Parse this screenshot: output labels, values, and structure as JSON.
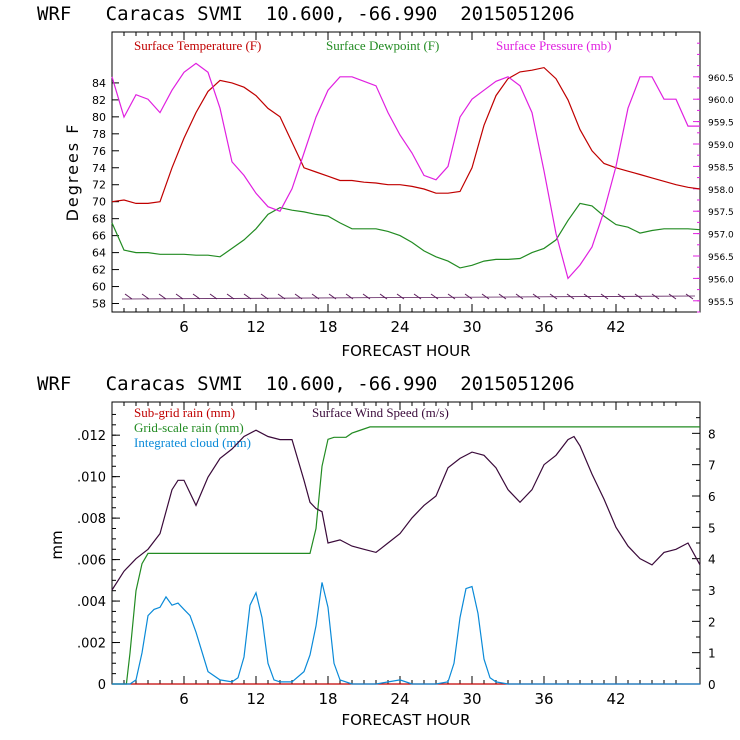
{
  "chart_data": [
    {
      "type": "line",
      "title": "WRF   Caracas SVMI  10.600, -66.990  2015051206",
      "xlabel": "FORECAST HOUR",
      "ylabel": "Degrees F",
      "xlim": [
        0,
        49
      ],
      "ylim": [
        57,
        90
      ],
      "y2lim": [
        955.25,
        961.5
      ],
      "x_ticks": [
        6,
        12,
        18,
        24,
        30,
        36,
        42
      ],
      "y_ticks": [
        58,
        60,
        62,
        64,
        66,
        68,
        70,
        72,
        74,
        76,
        78,
        80,
        82,
        84
      ],
      "y2_ticks": [
        "955.5",
        "956.0",
        "956.5",
        "957.0",
        "957.5",
        "958.0",
        "958.5",
        "959.0",
        "959.5",
        "960.0",
        "960.5"
      ],
      "legend": [
        "Surface Temperature (F)",
        "Surface Dewpoint (F)",
        "Surface Pressure (mb)"
      ],
      "series": [
        {
          "name": "Surface Temperature (F)",
          "axis": "left",
          "color": "#c00000",
          "x": [
            0,
            1,
            2,
            3,
            4,
            5,
            6,
            7,
            8,
            9,
            10,
            11,
            12,
            13,
            14,
            15,
            16,
            17,
            18,
            19,
            20,
            21,
            22,
            23,
            24,
            25,
            26,
            27,
            28,
            29,
            30,
            31,
            32,
            33,
            34,
            35,
            36,
            37,
            38,
            39,
            40,
            41,
            42,
            43,
            44,
            45,
            46,
            47,
            48,
            49
          ],
          "values": [
            70,
            70.2,
            69.8,
            69.8,
            70,
            74,
            77.5,
            80.5,
            83,
            84.3,
            84,
            83.5,
            82.5,
            81,
            80,
            77,
            74,
            73.5,
            73,
            72.5,
            72.5,
            72.3,
            72.2,
            72,
            72,
            71.8,
            71.5,
            71,
            71,
            71.2,
            74,
            79,
            82.5,
            84.5,
            85.3,
            85.5,
            85.8,
            84.5,
            82,
            78.5,
            76,
            74.5,
            74,
            73.6,
            73.2,
            72.8,
            72.4,
            72,
            71.7,
            71.5
          ]
        },
        {
          "name": "Surface Dewpoint (F)",
          "axis": "left",
          "color": "#228b22",
          "x": [
            0,
            1,
            2,
            3,
            4,
            5,
            6,
            7,
            8,
            9,
            10,
            11,
            12,
            13,
            14,
            15,
            16,
            17,
            18,
            19,
            20,
            21,
            22,
            23,
            24,
            25,
            26,
            27,
            28,
            29,
            30,
            31,
            32,
            33,
            34,
            35,
            36,
            37,
            38,
            39,
            40,
            41,
            42,
            43,
            44,
            45,
            46,
            47,
            48,
            49
          ],
          "values": [
            67.5,
            64.3,
            64,
            64,
            63.8,
            63.8,
            63.8,
            63.7,
            63.7,
            63.5,
            64.5,
            65.5,
            66.8,
            68.5,
            69.3,
            69,
            68.8,
            68.5,
            68.3,
            67.5,
            66.8,
            66.8,
            66.8,
            66.5,
            66,
            65.2,
            64.2,
            63.5,
            63,
            62.2,
            62.5,
            63,
            63.2,
            63.2,
            63.3,
            64,
            64.5,
            65.5,
            67.8,
            69.8,
            69.5,
            68.3,
            67.3,
            67,
            66.3,
            66.6,
            66.8,
            66.8,
            66.8,
            66.7
          ]
        },
        {
          "name": "Surface Pressure (mb)",
          "axis": "right",
          "color": "#e020e0",
          "x": [
            0,
            1,
            2,
            3,
            4,
            5,
            6,
            7,
            8,
            9,
            10,
            11,
            12,
            13,
            14,
            15,
            16,
            17,
            18,
            19,
            20,
            21,
            22,
            23,
            24,
            25,
            26,
            27,
            28,
            29,
            30,
            31,
            32,
            33,
            34,
            35,
            36,
            37,
            38,
            39,
            40,
            41,
            42,
            43,
            44,
            45,
            46,
            47,
            48,
            49
          ],
          "values": [
            960.5,
            959.6,
            960.1,
            960.0,
            959.7,
            960.2,
            960.6,
            960.8,
            960.6,
            959.8,
            958.6,
            958.3,
            957.9,
            957.6,
            957.5,
            958.0,
            958.8,
            959.6,
            960.2,
            960.5,
            960.5,
            960.4,
            960.3,
            959.7,
            959.2,
            958.8,
            958.3,
            958.2,
            958.5,
            959.6,
            960.0,
            960.2,
            960.4,
            960.5,
            960.3,
            959.7,
            958.4,
            957.0,
            956.0,
            956.3,
            956.7,
            957.5,
            958.5,
            959.8,
            960.5,
            960.5,
            960.0,
            960.0,
            959.4,
            959.4
          ]
        }
      ]
    },
    {
      "type": "line",
      "title": "WRF   Caracas SVMI  10.600, -66.990  2015051206",
      "xlabel": "FORECAST HOUR",
      "ylabel": "mm",
      "xlim": [
        0,
        49
      ],
      "ylim": [
        0,
        0.0136
      ],
      "y2lim": [
        0,
        9
      ],
      "x_ticks": [
        6,
        12,
        18,
        24,
        30,
        36,
        42
      ],
      "y_ticks": [
        ".012",
        ".010",
        ".008",
        ".006",
        ".004",
        ".002",
        "0"
      ],
      "y2_ticks": [
        "8",
        "7",
        "6",
        "5",
        "4",
        "3",
        "2",
        "1",
        "0"
      ],
      "legend": [
        "Sub-grid rain (mm)",
        "Grid-scale rain (mm)",
        "Integrated cloud (mm)",
        "Surface Wind Speed (m/s)"
      ],
      "series": [
        {
          "name": "Sub-grid rain (mm)",
          "axis": "left",
          "color": "#c00000",
          "x": [
            0,
            49
          ],
          "values": [
            0,
            0
          ]
        },
        {
          "name": "Grid-scale rain (mm)",
          "axis": "left",
          "color": "#228b22",
          "x": [
            0,
            1.2,
            1.5,
            2,
            2.5,
            3,
            16.5,
            17,
            17.5,
            18,
            18.5,
            19.5,
            20,
            20.5,
            21.5,
            22.5,
            49
          ],
          "values": [
            0,
            0,
            0.0015,
            0.0045,
            0.0058,
            0.0063,
            0.0063,
            0.0075,
            0.0105,
            0.0118,
            0.0119,
            0.0119,
            0.0121,
            0.0122,
            0.0124,
            0.0124,
            0.0124
          ]
        },
        {
          "name": "Integrated cloud (mm)",
          "axis": "left",
          "color": "#0a8ad8",
          "x": [
            0,
            1.5,
            2,
            2.5,
            3,
            3.5,
            4,
            4.5,
            5,
            5.5,
            6,
            6.5,
            7,
            8,
            9,
            10,
            10.5,
            11,
            11.5,
            12,
            12.5,
            13,
            13.5,
            14,
            15,
            16,
            16.5,
            17,
            17.5,
            18,
            18.5,
            19,
            20,
            22,
            24,
            25,
            27,
            28,
            28.5,
            29,
            29.5,
            30,
            30.5,
            31,
            31.5,
            32,
            33,
            35,
            49
          ],
          "values": [
            0,
            0,
            0.0002,
            0.0015,
            0.0033,
            0.0036,
            0.0037,
            0.0042,
            0.0038,
            0.0039,
            0.0036,
            0.0033,
            0.0025,
            0.0006,
            0.0002,
            0.0001,
            0.0003,
            0.0013,
            0.0038,
            0.0044,
            0.0032,
            0.001,
            0.0002,
            0.0001,
            0.0001,
            0.0006,
            0.0014,
            0.0028,
            0.0049,
            0.0037,
            0.001,
            0.0002,
            0,
            0,
            0.0002,
            0,
            0,
            0.0001,
            0.001,
            0.0032,
            0.0046,
            0.0047,
            0.0034,
            0.0012,
            0.0003,
            0.0001,
            0,
            0,
            0
          ]
        },
        {
          "name": "Surface Wind Speed (m/s)",
          "axis": "right",
          "color": "#3a0a3a",
          "x": [
            0,
            1,
            2,
            3,
            4,
            5,
            5.5,
            6,
            6.5,
            7,
            8,
            9,
            10,
            11,
            12,
            13,
            14,
            15,
            16,
            16.5,
            17,
            17.5,
            18,
            19,
            20,
            21,
            22,
            23,
            24,
            25,
            26,
            27,
            28,
            29,
            30,
            31,
            32,
            33,
            34,
            35,
            36,
            37,
            38,
            38.5,
            39,
            40,
            41,
            42,
            43,
            44,
            45,
            46,
            47,
            48,
            49
          ],
          "values": [
            3,
            3.6,
            4,
            4.3,
            4.8,
            6.2,
            6.5,
            6.5,
            6.1,
            5.7,
            6.6,
            7.2,
            7.5,
            7.9,
            8.1,
            7.9,
            7.8,
            7.8,
            6.5,
            5.8,
            5.6,
            5.5,
            4.5,
            4.6,
            4.4,
            4.3,
            4.2,
            4.5,
            4.8,
            5.3,
            5.7,
            6,
            6.9,
            7.2,
            7.4,
            7.3,
            6.9,
            6.2,
            5.8,
            6.2,
            7,
            7.3,
            7.8,
            7.9,
            7.6,
            6.7,
            5.9,
            5,
            4.4,
            4,
            3.8,
            4.2,
            4.3,
            4.5,
            3.8
          ]
        }
      ]
    }
  ]
}
